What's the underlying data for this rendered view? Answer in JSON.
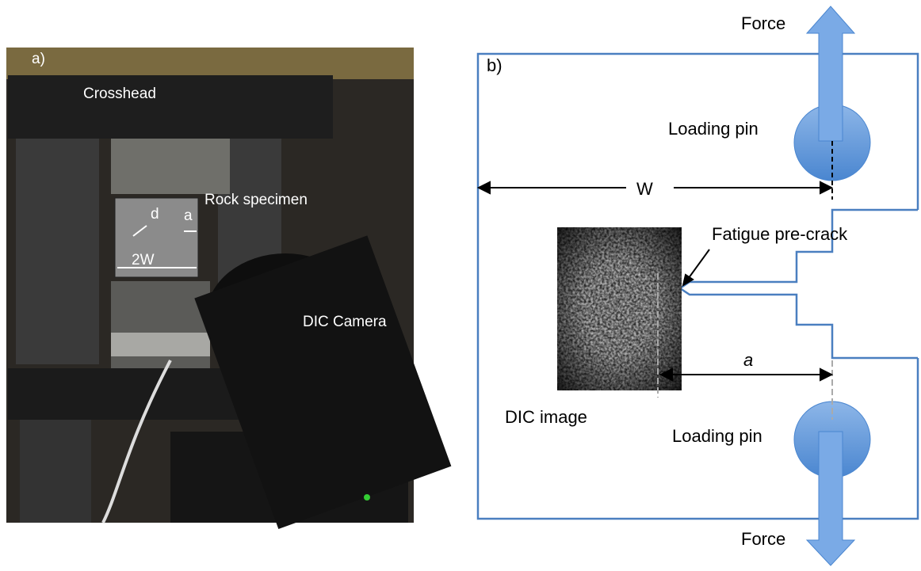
{
  "panel_a": {
    "label": "a)",
    "crosshead": "Crosshead",
    "specimen": "Rock specimen",
    "notch_depth": "d",
    "crack_length": "a",
    "width": "2W",
    "camera": "DIC Camera"
  },
  "panel_b": {
    "label": "b)",
    "force_top": "Force",
    "pin_top": "Loading pin",
    "width": "W",
    "precrack": "Fatigue pre-crack",
    "crack_length": "a",
    "dic_image": "DIC image",
    "pin_bottom": "Loading pin",
    "force_bottom": "Force"
  }
}
